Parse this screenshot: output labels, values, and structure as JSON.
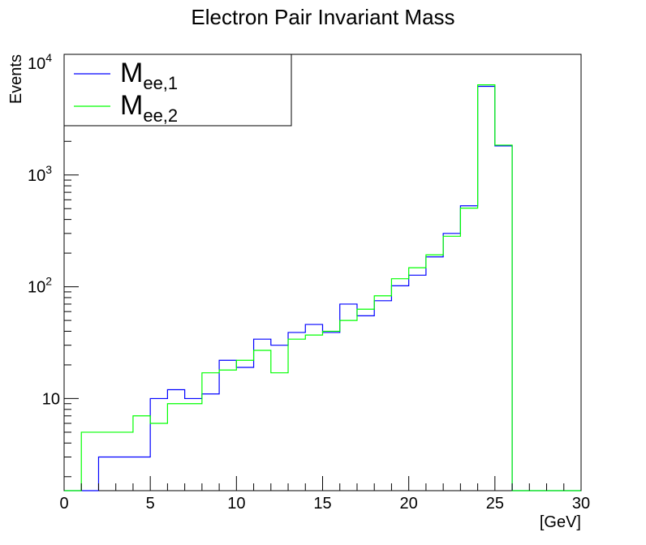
{
  "chart_data": {
    "type": "histogram",
    "title": "Electron Pair Invariant Mass",
    "xlabel": "[GeV]",
    "ylabel": "Events",
    "x_scale": "linear",
    "y_scale": "log",
    "xlim": [
      0,
      30
    ],
    "ylim": [
      1.5,
      12000
    ],
    "x_ticks": [
      0,
      5,
      10,
      15,
      20,
      25,
      30
    ],
    "x_tick_labels": [
      "0",
      "5",
      "10",
      "15",
      "20",
      "25",
      "30"
    ],
    "y_ticks": [
      10,
      100,
      1000,
      10000
    ],
    "y_tick_labels": [
      "10",
      "10^2",
      "10^3",
      "10^4"
    ],
    "bin_edges": [
      0,
      1,
      2,
      3,
      4,
      5,
      6,
      7,
      8,
      9,
      10,
      11,
      12,
      13,
      14,
      15,
      16,
      17,
      18,
      19,
      20,
      21,
      22,
      23,
      24,
      25,
      26,
      27,
      28,
      29,
      30
    ],
    "series": [
      {
        "legend_main": "M",
        "legend_sub": "ee,1",
        "color": "#0000ff",
        "values": [
          0,
          0,
          3,
          3,
          3,
          10,
          12,
          10,
          11,
          22,
          19,
          34,
          30,
          39,
          46,
          39,
          70,
          55,
          75,
          102,
          127,
          185,
          300,
          530,
          6200,
          1820,
          0,
          0,
          0,
          0
        ]
      },
      {
        "legend_main": "M",
        "legend_sub": "ee,2",
        "color": "#00ff00",
        "values": [
          0,
          5,
          5,
          5,
          7,
          6,
          9,
          9,
          17,
          18,
          22,
          27,
          17,
          34,
          37,
          40,
          50,
          63,
          83,
          118,
          148,
          193,
          283,
          505,
          6400,
          1850,
          0,
          0,
          0,
          0
        ]
      }
    ],
    "legend_position": "top-left",
    "grid": false
  }
}
